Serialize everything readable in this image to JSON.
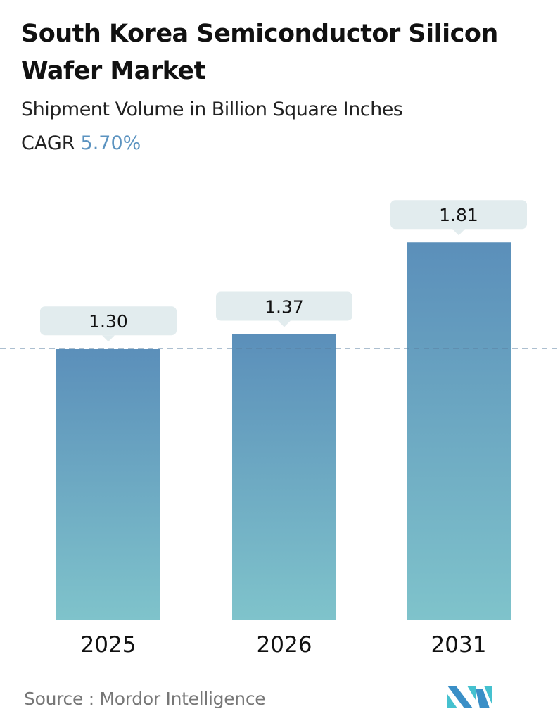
{
  "chart_data": {
    "type": "bar",
    "title": "South Korea Semiconductor Silicon Wafer Market",
    "subtitle": "Shipment Volume in Billion Square Inches",
    "cagr_label": "CAGR",
    "cagr_value": "5.70%",
    "categories": [
      "2025",
      "2026",
      "2031"
    ],
    "values": [
      1.3,
      1.37,
      1.81
    ],
    "data_labels": [
      "1.30",
      "1.37",
      "1.81"
    ],
    "reference_line": 1.3,
    "grid": false,
    "colors": {
      "bar_top": "#5b8fba",
      "bar_bottom": "#7fc3cb",
      "label_box": "#e2ecee",
      "cagr": "#5b93c0",
      "ref_line": "#5a7fa0"
    }
  },
  "source": {
    "label": "Source :",
    "name": "Mordor Intelligence"
  },
  "logo": {
    "name": "mordor-intelligence-logo"
  }
}
